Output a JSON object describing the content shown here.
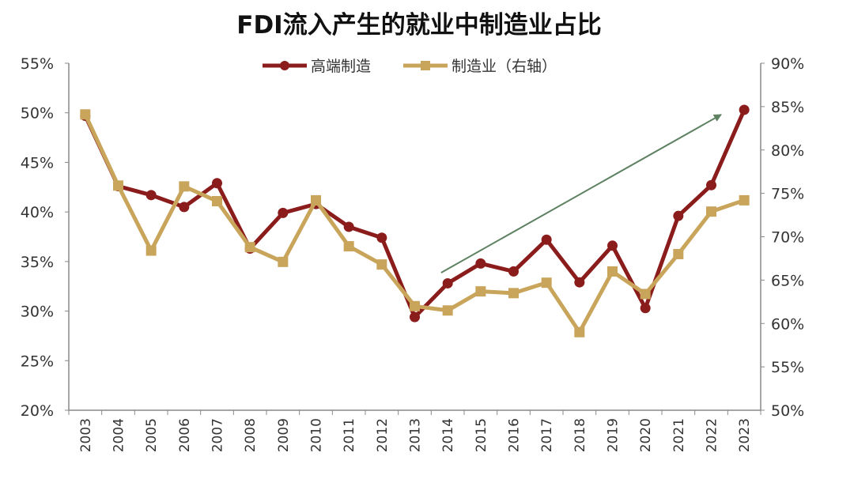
{
  "chart_data": {
    "type": "line",
    "title": "FDI流入产生的就业中制造业占比",
    "x": [
      "2003",
      "2004",
      "2005",
      "2006",
      "2007",
      "2008",
      "2009",
      "2010",
      "2011",
      "2012",
      "2013",
      "2014",
      "2015",
      "2016",
      "2017",
      "2018",
      "2019",
      "2020",
      "2021",
      "2022",
      "2023"
    ],
    "left_axis": {
      "ylim": [
        20,
        55
      ],
      "ticks": [
        "20%",
        "25%",
        "30%",
        "35%",
        "40%",
        "45%",
        "50%",
        "55%"
      ],
      "tick_values": [
        20,
        25,
        30,
        35,
        40,
        45,
        50,
        55
      ]
    },
    "right_axis": {
      "ylim": [
        50,
        90
      ],
      "ticks": [
        "50%",
        "55%",
        "60%",
        "65%",
        "70%",
        "75%",
        "80%",
        "85%",
        "90%"
      ],
      "tick_values": [
        50,
        55,
        60,
        65,
        70,
        75,
        80,
        85,
        90
      ]
    },
    "series": [
      {
        "name": "高端制造",
        "axis": "left",
        "color": "#8B1C1C",
        "marker": "circle",
        "values": [
          49.7,
          42.6,
          41.7,
          40.5,
          42.9,
          36.3,
          39.9,
          40.8,
          38.5,
          37.4,
          29.4,
          32.8,
          34.8,
          34.0,
          37.2,
          32.9,
          36.6,
          30.3,
          39.6,
          42.7,
          50.3
        ]
      },
      {
        "name": "制造业（右轴）",
        "axis": "right",
        "color": "#C9A55C",
        "marker": "square",
        "values": [
          84.1,
          75.9,
          68.4,
          75.8,
          74.1,
          68.8,
          67.1,
          74.2,
          68.9,
          66.8,
          62.0,
          61.5,
          63.7,
          63.5,
          64.7,
          59.0,
          66.0,
          63.4,
          68.0,
          72.9,
          74.2
        ]
      }
    ],
    "annotation": {
      "type": "trend-arrow",
      "color": "#5E8262",
      "from_year": 2013.8,
      "to_year": 2022.3
    },
    "legend": "top-center",
    "grid": false
  }
}
